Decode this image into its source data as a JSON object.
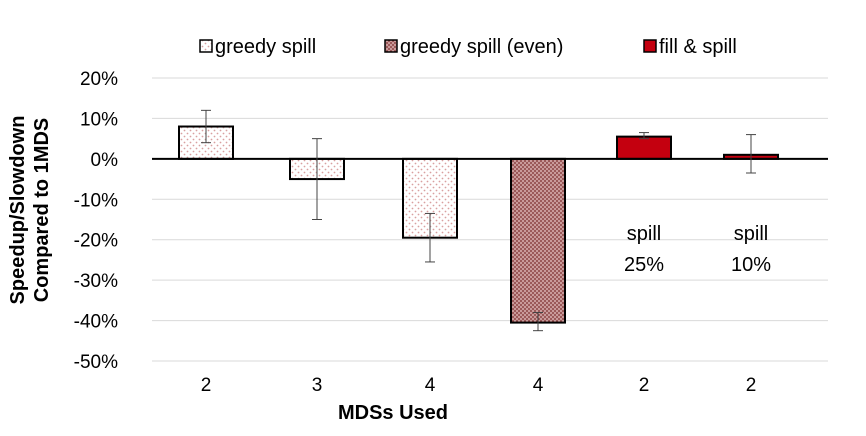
{
  "chart_data": {
    "type": "bar",
    "xlabel": "MDSs Used",
    "ylabel_lines": [
      "Speedup/Slowdown",
      "Compared to 1MDS"
    ],
    "ylim": [
      -50,
      20
    ],
    "yticks": [
      20,
      10,
      0,
      -10,
      -20,
      -30,
      -40,
      -50
    ],
    "ytick_labels": [
      "20%",
      "10%",
      "0%",
      "-10%",
      "-20%",
      "-30%",
      "-40%",
      "-50%"
    ],
    "grid": true,
    "legend_position": "top",
    "series": [
      {
        "name": "greedy spill",
        "pattern": "dots-light",
        "color": "#f4d8d8"
      },
      {
        "name": "greedy spill (even)",
        "pattern": "dots-dark",
        "color": "#b07070"
      },
      {
        "name": "fill & spill",
        "pattern": "solid",
        "color": "#c4000f"
      }
    ],
    "bars": [
      {
        "category": "2",
        "series": 0,
        "value": 8,
        "err_low": 4,
        "err_high": 12
      },
      {
        "category": "3",
        "series": 0,
        "value": -5,
        "err_low": -15,
        "err_high": 5
      },
      {
        "category": "4",
        "series": 0,
        "value": -19.5,
        "err_low": -25.5,
        "err_high": -13.5
      },
      {
        "category": "4",
        "series": 1,
        "value": -40.5,
        "err_low": -42.5,
        "err_high": -38
      },
      {
        "category": "2",
        "series": 2,
        "value": 5.5,
        "err_low": 5,
        "err_high": 6.5
      },
      {
        "category": "2",
        "series": 2,
        "value": 1,
        "err_low": -3.5,
        "err_high": 6
      }
    ],
    "annotations": [
      {
        "bar_index": 4,
        "lines": [
          "spill",
          "25%"
        ]
      },
      {
        "bar_index": 5,
        "lines": [
          "spill",
          "10%"
        ]
      }
    ]
  }
}
